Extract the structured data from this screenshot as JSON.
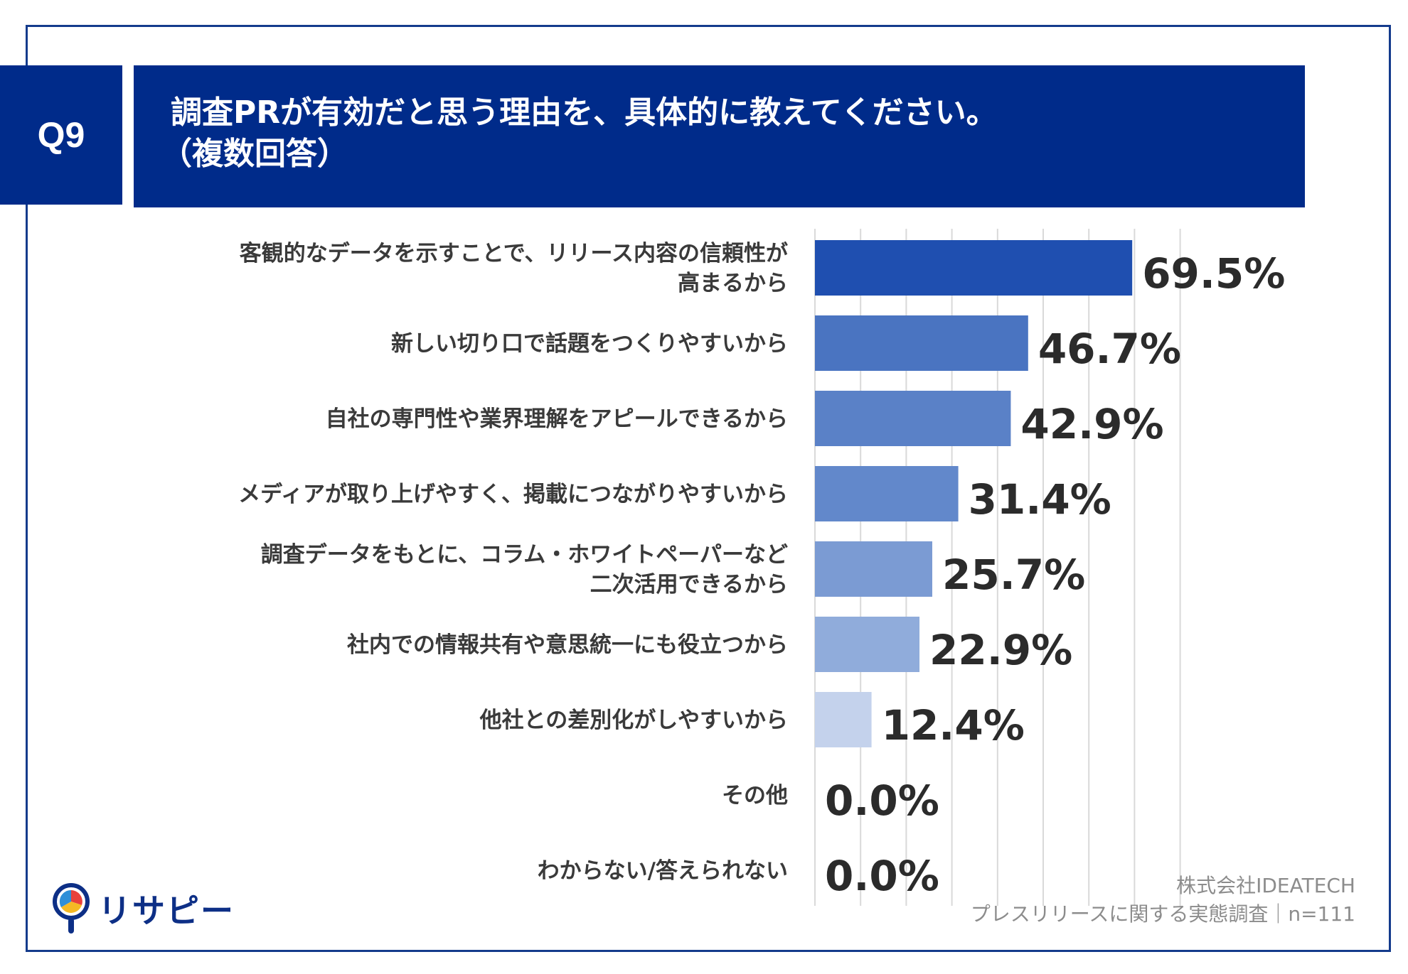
{
  "header": {
    "badge": "Q9",
    "title_line1": "調査PRが有効だと思う理由を、具体的に教えてください。",
    "title_line2": "（複数回答）"
  },
  "footer": {
    "company": "株式会社IDEATECH",
    "survey": "プレスリリースに関する実態調査｜n=111",
    "logo_text": "リサピー"
  },
  "chart_data": {
    "type": "bar",
    "orientation": "horizontal",
    "categories": [
      [
        "客観的なデータを示すことで、リリース内容の信頼性が",
        "高まるから"
      ],
      [
        "新しい切り口で話題をつくりやすいから"
      ],
      [
        "自社の専門性や業界理解をアピールできるから"
      ],
      [
        "メディアが取り上げやすく、掲載につながりやすいから"
      ],
      [
        "調査データをもとに、コラム・ホワイトペーパーなど",
        "二次活用できるから"
      ],
      [
        "社内での情報共有や意思統一にも役立つから"
      ],
      [
        "他社との差別化がしやすいから"
      ],
      [
        "その他"
      ],
      [
        "わからない/答えられない"
      ]
    ],
    "values": [
      69.5,
      46.7,
      42.9,
      31.4,
      25.7,
      22.9,
      12.4,
      0.0,
      0.0
    ],
    "value_labels": [
      "69.5%",
      "46.7%",
      "42.9%",
      "31.4%",
      "25.7%",
      "22.9%",
      "12.4%",
      "0.0%",
      "0.0%"
    ],
    "unit": "%",
    "xlim": [
      0,
      80
    ],
    "gridlines": true,
    "bar_colors": [
      "#1f4fb0",
      "#4a74c1",
      "#5a81c7",
      "#6288cb",
      "#7b9bd3",
      "#90acdb",
      "#c4d2ec",
      "#c4d2ec",
      "#c4d2ec"
    ]
  }
}
